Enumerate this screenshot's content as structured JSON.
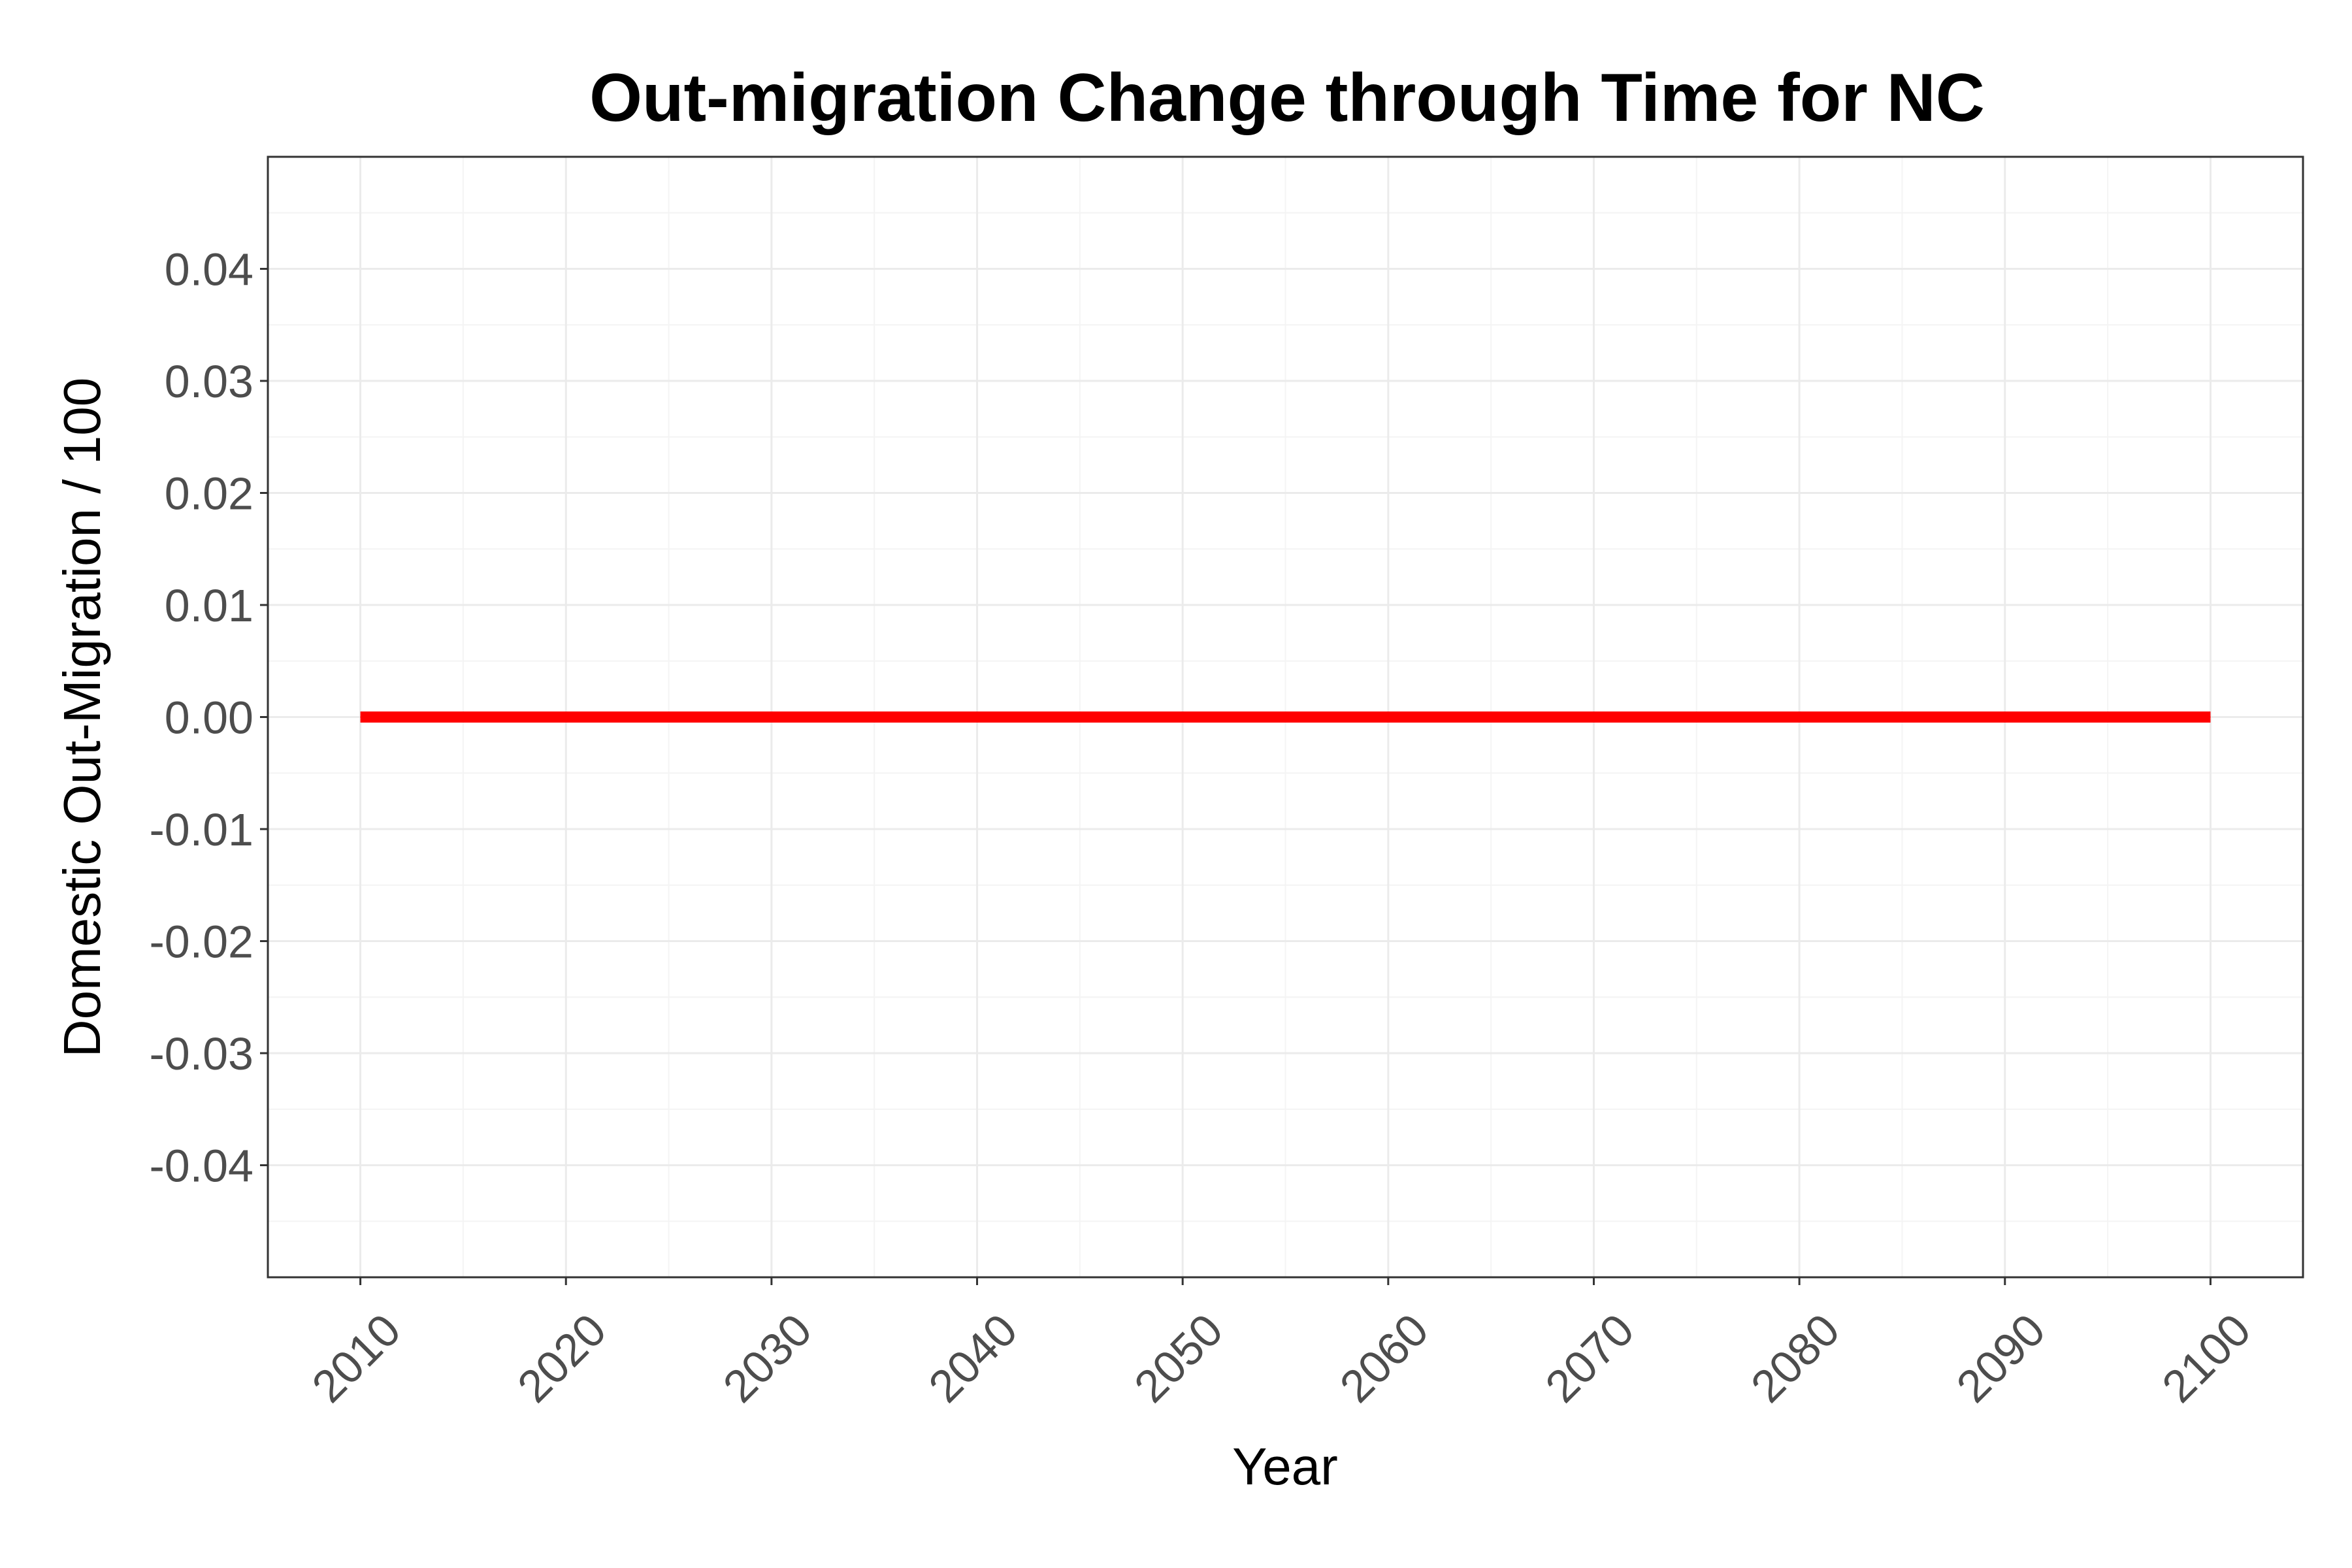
{
  "chart_data": {
    "type": "line",
    "title": "Out-migration Change through Time for NC",
    "xlabel": "Year",
    "ylabel": "Domestic Out-Migration / 100",
    "x": [
      2010,
      2020,
      2030,
      2040,
      2050,
      2060,
      2070,
      2080,
      2090,
      2100
    ],
    "series": [
      {
        "values": [
          0,
          0,
          0,
          0,
          0,
          0,
          0,
          0,
          0,
          0
        ],
        "color": "#ff0000"
      }
    ],
    "xlim": [
      2005.5,
      2104.5
    ],
    "ylim": [
      -0.05,
      0.05
    ],
    "x_ticks": [
      2010,
      2020,
      2030,
      2040,
      2050,
      2060,
      2070,
      2080,
      2090,
      2100
    ],
    "x_tick_labels": [
      "2010",
      "2020",
      "2030",
      "2040",
      "2050",
      "2060",
      "2070",
      "2080",
      "2090",
      "2100"
    ],
    "y_ticks": [
      0.04,
      0.03,
      0.02,
      0.01,
      0.0,
      -0.01,
      -0.02,
      -0.03,
      -0.04
    ],
    "y_tick_labels": [
      "0.04",
      "0.03",
      "0.02",
      "0.01",
      "0.00",
      "-0.01",
      "-0.02",
      "-0.03",
      "-0.04"
    ],
    "grid": true,
    "legend": "none"
  }
}
